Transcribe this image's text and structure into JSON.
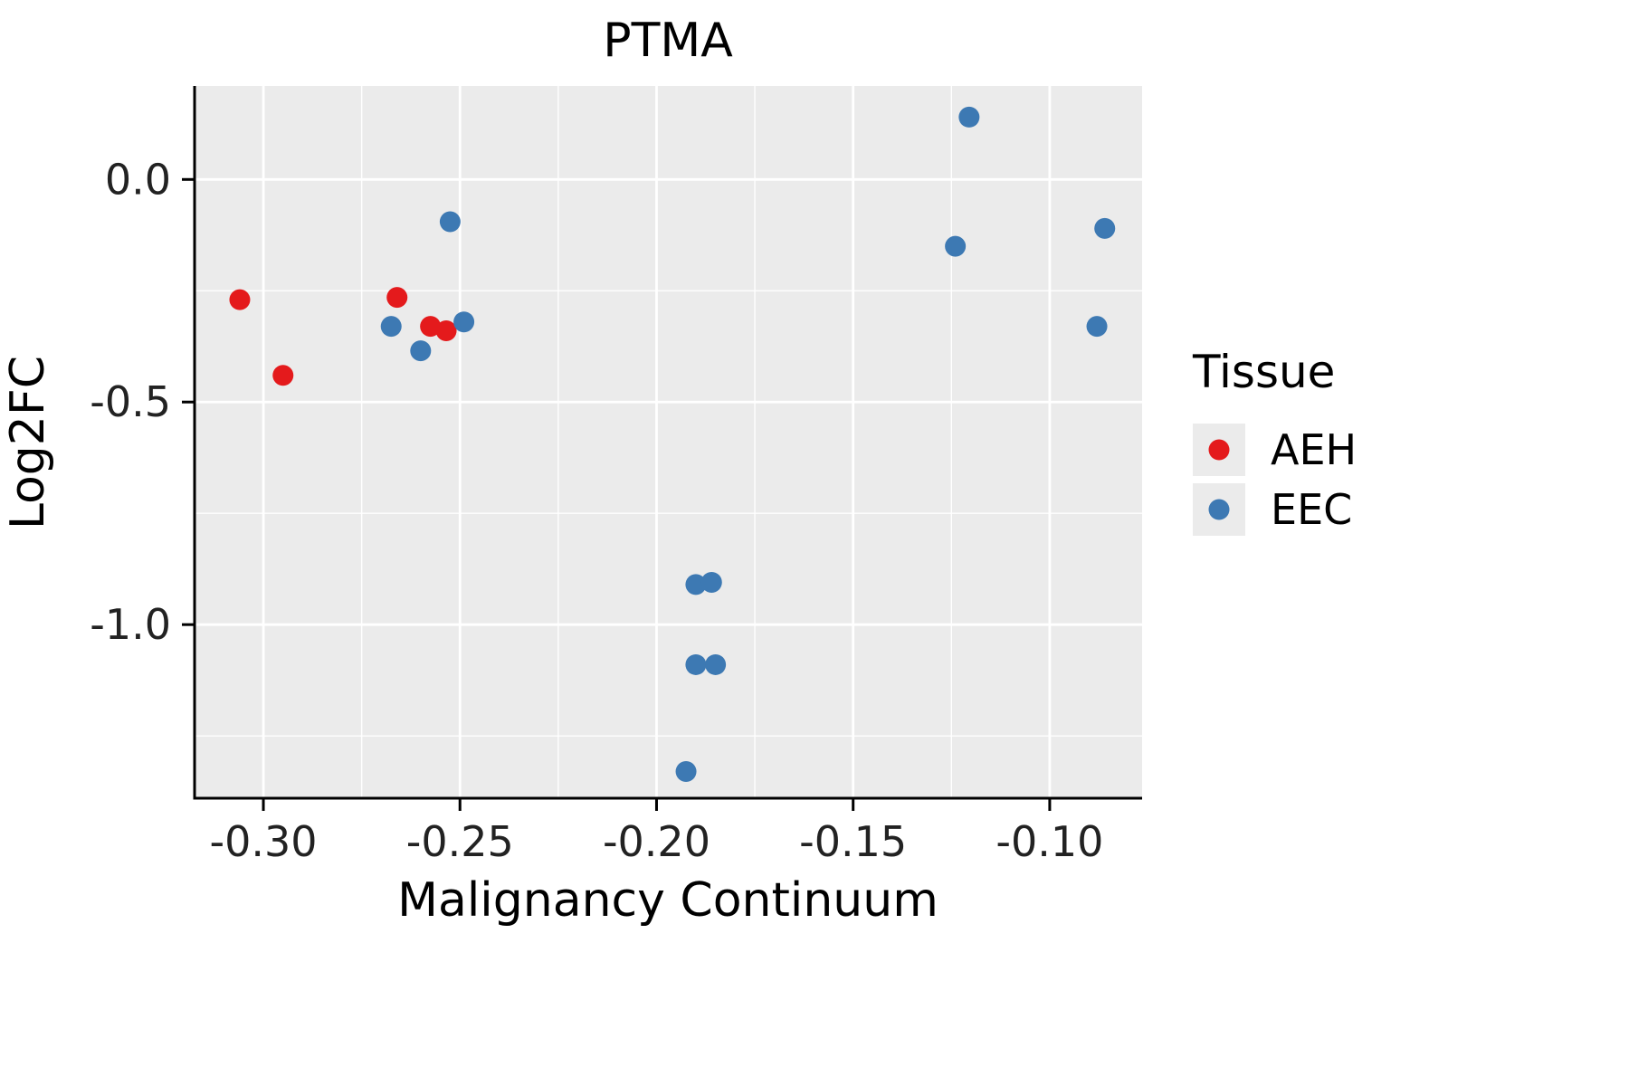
{
  "chart_data": {
    "type": "scatter",
    "title": "PTMA",
    "xlabel": "Malignancy Continuum",
    "ylabel": "Log2FC",
    "xlim": [
      -0.3175,
      -0.0765
    ],
    "ylim": [
      -1.39,
      0.21
    ],
    "x_ticks": [
      -0.3,
      -0.25,
      -0.2,
      -0.15,
      -0.1
    ],
    "x_tick_labels": [
      "-0.30",
      "-0.25",
      "-0.20",
      "-0.15",
      "-0.10"
    ],
    "x_minor_ticks": [
      -0.275,
      -0.225,
      -0.175,
      -0.125
    ],
    "y_ticks": [
      0.0,
      -0.5,
      -1.0
    ],
    "y_tick_labels": [
      "0.0",
      "-0.5",
      "-1.0"
    ],
    "y_minor_ticks": [
      -0.25,
      -0.75,
      -1.25
    ],
    "grid": true,
    "panel_color": "#ebebeb",
    "grid_color": "#ffffff",
    "axis_color": "#000000",
    "legend": {
      "title": "Tissue",
      "position": "right",
      "key_fill": "#ebebeb",
      "entries": [
        {
          "label": "AEH",
          "color": "#e41a1c"
        },
        {
          "label": "EEC",
          "color": "#3d79b3"
        }
      ]
    },
    "series": [
      {
        "name": "AEH",
        "color": "#e41a1c",
        "points": [
          [
            -0.306,
            -0.27
          ],
          [
            -0.295,
            -0.44
          ],
          [
            -0.266,
            -0.265
          ],
          [
            -0.2575,
            -0.33
          ],
          [
            -0.2535,
            -0.34
          ]
        ]
      },
      {
        "name": "EEC",
        "color": "#3d79b3",
        "points": [
          [
            -0.2675,
            -0.33
          ],
          [
            -0.26,
            -0.385
          ],
          [
            -0.2525,
            -0.095
          ],
          [
            -0.249,
            -0.32
          ],
          [
            -0.19,
            -0.91
          ],
          [
            -0.186,
            -0.905
          ],
          [
            -0.19,
            -1.09
          ],
          [
            -0.185,
            -1.09
          ],
          [
            -0.1925,
            -1.33
          ],
          [
            -0.1205,
            0.14
          ],
          [
            -0.124,
            -0.15
          ],
          [
            -0.086,
            -0.11
          ],
          [
            -0.088,
            -0.33
          ]
        ]
      }
    ]
  }
}
